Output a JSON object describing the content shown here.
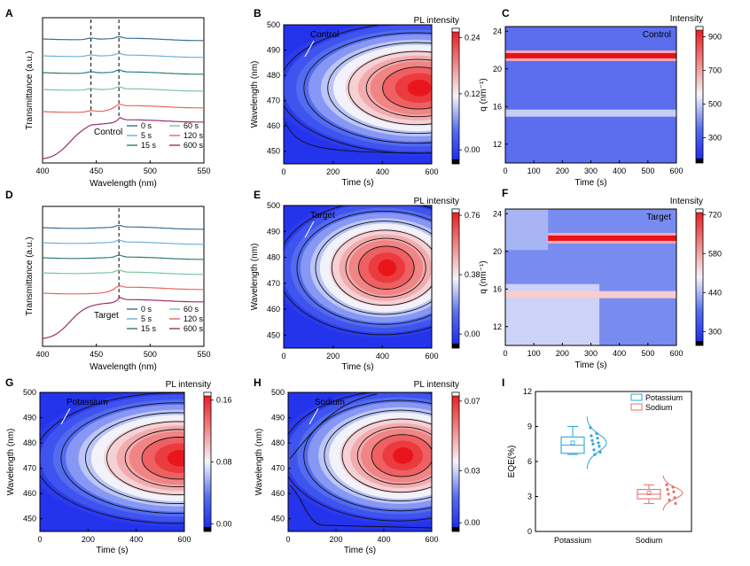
{
  "panels": [
    {
      "id": "A",
      "kind": "spectra",
      "letter": "A",
      "xlabel": "Wavelength (nm)",
      "ylabel": "Transmittance (a.u.)",
      "xticks": [
        "400",
        "450",
        "500",
        "550"
      ],
      "legend_title": "Control",
      "legend": [
        {
          "label": "0 s",
          "color": "#3a6f96"
        },
        {
          "label": "5 s",
          "color": "#6cb0d8"
        },
        {
          "label": "15 s",
          "color": "#2f7a7a"
        },
        {
          "label": "60 s",
          "color": "#79c2a4"
        },
        {
          "label": "120 s",
          "color": "#e8655d"
        },
        {
          "label": "600 s",
          "color": "#9a2f6e"
        }
      ]
    },
    {
      "id": "B",
      "kind": "map",
      "letter": "B",
      "inlabel": "Control",
      "xlabel": "Time (s)",
      "ylabel": "Wavelength (nm)",
      "xticks": [
        "0",
        "200",
        "400",
        "600"
      ],
      "yticks": [
        "450",
        "460",
        "470",
        "480",
        "490",
        "500"
      ],
      "cbar_title": "PL intensity",
      "cbar_ticks": [
        "0.24",
        "0.12",
        "0.00"
      ]
    },
    {
      "id": "C",
      "kind": "giwaxs",
      "letter": "C",
      "inlabel": "Control",
      "xlabel": "Time (s)",
      "ylabel": "q (nm⁻¹)",
      "xticks": [
        "0",
        "100",
        "200",
        "300",
        "400",
        "500",
        "600"
      ],
      "yticks": [
        "12",
        "16",
        "20",
        "24"
      ],
      "cbar_title": "Intensity",
      "cbar_ticks": [
        "900",
        "700",
        "500",
        "300"
      ]
    },
    {
      "id": "D",
      "kind": "spectra",
      "letter": "D",
      "xlabel": "Wavelength (nm)",
      "ylabel": "Transmittance (a.u.)",
      "xticks": [
        "400",
        "450",
        "500",
        "550"
      ],
      "legend_title": "Target",
      "legend": [
        {
          "label": "0 s",
          "color": "#3a6f96"
        },
        {
          "label": "5 s",
          "color": "#6cb0d8"
        },
        {
          "label": "15 s",
          "color": "#2f7a7a"
        },
        {
          "label": "60 s",
          "color": "#79c2a4"
        },
        {
          "label": "120 s",
          "color": "#e8655d"
        },
        {
          "label": "600 s",
          "color": "#9a2f6e"
        }
      ]
    },
    {
      "id": "E",
      "kind": "map",
      "letter": "E",
      "inlabel": "Target",
      "xlabel": "Time (s)",
      "ylabel": "Wavelength (nm)",
      "xticks": [
        "0",
        "200",
        "400",
        "600"
      ],
      "yticks": [
        "450",
        "460",
        "470",
        "480",
        "490",
        "500"
      ],
      "cbar_title": "PL intensity",
      "cbar_ticks": [
        "0.76",
        "0.38",
        "0.00"
      ]
    },
    {
      "id": "F",
      "kind": "giwaxs",
      "letter": "F",
      "inlabel": "Target",
      "xlabel": "Time (s)",
      "ylabel": "q (nm⁻¹)",
      "xticks": [
        "0",
        "100",
        "200",
        "300",
        "400",
        "500",
        "600"
      ],
      "yticks": [
        "12",
        "16",
        "20",
        "24"
      ],
      "cbar_title": "Intensity",
      "cbar_ticks": [
        "720",
        "580",
        "440",
        "300"
      ]
    },
    {
      "id": "G",
      "kind": "map",
      "letter": "G",
      "inlabel": "Potassium",
      "xlabel": "Time (s)",
      "ylabel": "Wavelength (nm)",
      "xticks": [
        "0",
        "200",
        "400",
        "600"
      ],
      "yticks": [
        "450",
        "460",
        "470",
        "480",
        "490",
        "500"
      ],
      "cbar_title": "PL  intensity",
      "cbar_ticks": [
        "0.16",
        "0.08",
        "0.00"
      ]
    },
    {
      "id": "H",
      "kind": "map",
      "letter": "H",
      "inlabel": "Sodium",
      "xlabel": "Time (s)",
      "ylabel": "Wavelength (nm)",
      "xticks": [
        "0",
        "200",
        "400",
        "600"
      ],
      "yticks": [
        "450",
        "460",
        "470",
        "480",
        "490",
        "500"
      ],
      "cbar_title": "PL intensity",
      "cbar_ticks": [
        "0.07",
        "0.03",
        "0.00"
      ]
    },
    {
      "id": "I",
      "kind": "box",
      "letter": "I",
      "ylabel": "EQE(%)",
      "yticks": [
        "0",
        "3",
        "6",
        "9",
        "12"
      ],
      "categories": [
        "Potassium",
        "Sodium"
      ],
      "legend": [
        {
          "label": "Potassium",
          "color": "#2aa7d8"
        },
        {
          "label": "Sodium",
          "color": "#e8706a"
        }
      ]
    }
  ],
  "chart_data": [
    {
      "type": "line",
      "panel": "A",
      "legend_title": "Control",
      "xlabel": "Wavelength (nm)",
      "ylabel": "Transmittance (a.u.)",
      "xlim": [
        400,
        550
      ],
      "series": [
        "0 s",
        "5 s",
        "15 s",
        "60 s",
        "120 s",
        "600 s"
      ],
      "reference_lines_nm": [
        445,
        471
      ]
    },
    {
      "type": "heatmap",
      "panel": "B",
      "label": "Control",
      "xlabel": "Time (s)",
      "ylabel": "Wavelength (nm)",
      "xlim": [
        0,
        600
      ],
      "ylim": [
        445,
        500
      ],
      "colorbar": {
        "title": "PL intensity",
        "range": [
          -0.03,
          0.26
        ]
      },
      "peak": {
        "time_s": 530,
        "wavelength_nm": 475
      }
    },
    {
      "type": "heatmap",
      "panel": "C",
      "label": "Control",
      "xlabel": "Time (s)",
      "ylabel": "q (nm⁻¹)",
      "xlim": [
        0,
        600
      ],
      "ylim": [
        10,
        24.5
      ],
      "colorbar": {
        "title": "Intensity",
        "range": [
          150,
          960
        ]
      },
      "bands_q": [
        21.4,
        15.3
      ]
    },
    {
      "type": "line",
      "panel": "D",
      "legend_title": "Target",
      "xlabel": "Wavelength (nm)",
      "ylabel": "Transmittance (a.u.)",
      "xlim": [
        400,
        550
      ],
      "series": [
        "0 s",
        "5 s",
        "15 s",
        "60 s",
        "120 s",
        "600 s"
      ],
      "reference_lines_nm": [
        471
      ]
    },
    {
      "type": "heatmap",
      "panel": "E",
      "label": "Target",
      "xlabel": "Time (s)",
      "ylabel": "Wavelength (nm)",
      "xlim": [
        0,
        600
      ],
      "ylim": [
        445,
        500
      ],
      "colorbar": {
        "title": "PL intensity",
        "range": [
          -0.09,
          0.8
        ]
      },
      "peak": {
        "time_s": 400,
        "wavelength_nm": 476
      }
    },
    {
      "type": "heatmap",
      "panel": "F",
      "label": "Target",
      "xlabel": "Time (s)",
      "ylabel": "q (nm⁻¹)",
      "xlim": [
        0,
        600
      ],
      "ylim": [
        10,
        24.5
      ],
      "colorbar": {
        "title": "Intensity",
        "range": [
          250,
          740
        ]
      },
      "bands_q": [
        21.4,
        15.4
      ]
    },
    {
      "type": "heatmap",
      "panel": "G",
      "label": "Potassium",
      "xlabel": "Time (s)",
      "ylabel": "Wavelength (nm)",
      "xlim": [
        0,
        600
      ],
      "ylim": [
        445,
        500
      ],
      "colorbar": {
        "title": "PL  intensity",
        "range": [
          -0.01,
          0.17
        ]
      },
      "peak": {
        "time_s": 560,
        "wavelength_nm": 474
      }
    },
    {
      "type": "heatmap",
      "panel": "H",
      "label": "Sodium",
      "xlabel": "Time (s)",
      "ylabel": "Wavelength (nm)",
      "xlim": [
        0,
        600
      ],
      "ylim": [
        445,
        500
      ],
      "colorbar": {
        "title": "PL intensity",
        "range": [
          -0.005,
          0.075
        ]
      },
      "peak": {
        "time_s": 460,
        "wavelength_nm": 475
      }
    },
    {
      "type": "box",
      "panel": "I",
      "ylabel": "EQE(%)",
      "ylim": [
        0,
        12
      ],
      "categories": [
        "Potassium",
        "Sodium"
      ],
      "series": [
        {
          "name": "Potassium",
          "q1": 6.7,
          "median": 7.4,
          "q3": 8.1,
          "whisker_low": 6.6,
          "whisker_high": 9.0,
          "mean": 7.6,
          "points": [
            8.9,
            8.4,
            8.2,
            8.0,
            7.8,
            7.6,
            7.5,
            7.3,
            7.0,
            6.8,
            6.6
          ]
        },
        {
          "name": "Sodium",
          "q1": 2.8,
          "median": 3.2,
          "q3": 3.6,
          "whisker_low": 2.4,
          "whisker_high": 4.0,
          "mean": 3.3,
          "points": [
            4.0,
            3.8,
            3.6,
            3.4,
            3.2,
            2.9,
            2.7,
            2.4
          ]
        }
      ]
    }
  ]
}
